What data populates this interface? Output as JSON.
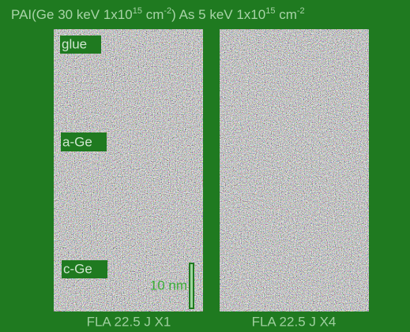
{
  "header": {
    "title": [
      "PAI(Ge 30 keV 1x10",
      "15",
      " cm",
      "-2",
      ") As 5 keV 1x10",
      "15",
      " cm",
      "-2"
    ]
  },
  "panels": [
    {
      "labels": [
        "glue",
        "a-Ge",
        "c-Ge"
      ],
      "scale_bar": "10 nm",
      "caption": "FLA 22.5 J X1"
    },
    {
      "caption": "FLA 22.5 J X4"
    }
  ]
}
